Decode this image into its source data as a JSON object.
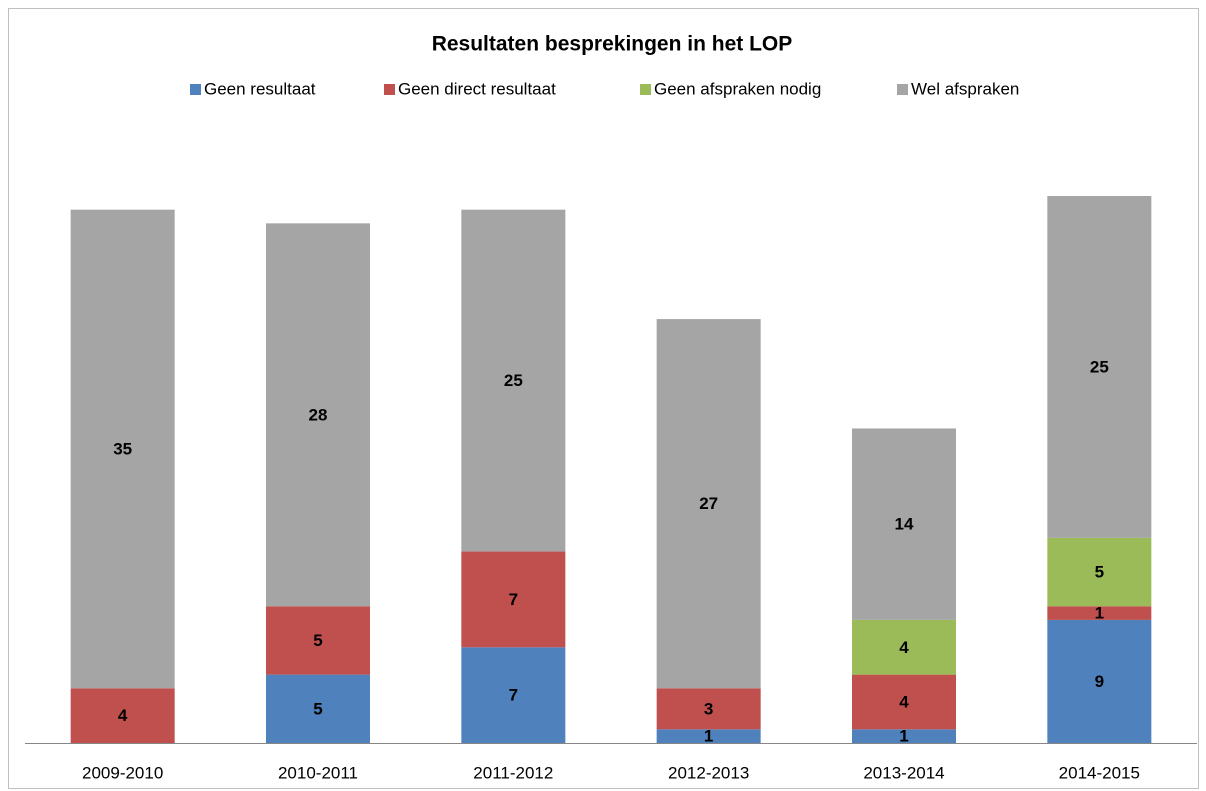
{
  "chart_data": {
    "type": "stacked_bar",
    "title": "Resultaten besprekingen in het LOP",
    "categories": [
      "2009-2010",
      "2010-2011",
      "2011-2012",
      "2012-2013",
      "2013-2014",
      "2014-2015"
    ],
    "series": [
      {
        "name": "Geen resultaat",
        "color": "#4f81bd",
        "values": [
          0,
          5,
          7,
          1,
          1,
          9
        ]
      },
      {
        "name": "Geen direct resultaat",
        "color": "#c0504d",
        "values": [
          4,
          5,
          7,
          3,
          4,
          1
        ]
      },
      {
        "name": "Geen afspraken nodig",
        "color": "#9bbb59",
        "values": [
          0,
          0,
          0,
          0,
          4,
          5
        ]
      },
      {
        "name": "Wel afspraken",
        "color": "#a5a5a5",
        "values": [
          35,
          28,
          25,
          27,
          14,
          25
        ]
      }
    ],
    "legend": "top"
  }
}
